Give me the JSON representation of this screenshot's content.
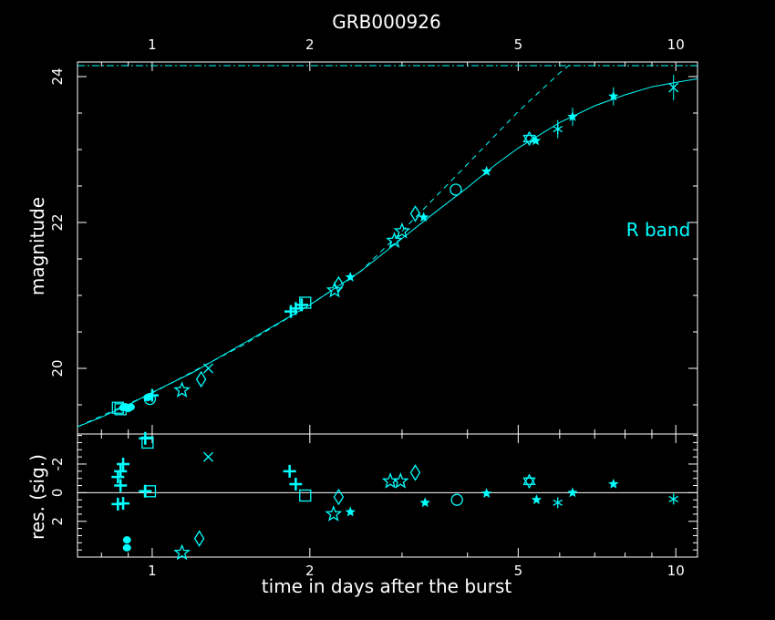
{
  "colors": {
    "background": "#000000",
    "axes": "#ffffff",
    "data": "#00ffff"
  },
  "chart_data": [
    {
      "type": "scatter",
      "title": "GRB000926",
      "xlabel": "",
      "ylabel": "magnitude",
      "x_scale": "log",
      "xlim": [
        0.72,
        11.0
      ],
      "ylim": [
        24.2,
        19.1
      ],
      "y_inverted": true,
      "xticks": [
        1,
        2,
        5,
        10
      ],
      "xtick_labels": [
        "1",
        "2",
        "5",
        "10"
      ],
      "yticks": [
        20,
        22,
        24
      ],
      "ytick_labels": [
        "20",
        "22",
        "24"
      ],
      "annotation": "R band",
      "host_level": 24.15,
      "points": [
        {
          "x": 0.86,
          "y": 19.46,
          "m": "square"
        },
        {
          "x": 0.87,
          "y": 19.44,
          "m": "square"
        },
        {
          "x": 0.88,
          "y": 19.46,
          "m": "circle_filled"
        },
        {
          "x": 0.89,
          "y": 19.47,
          "m": "circle_filled"
        },
        {
          "x": 0.9,
          "y": 19.45,
          "m": "circle_filled"
        },
        {
          "x": 0.91,
          "y": 19.47,
          "m": "circle_filled"
        },
        {
          "x": 0.98,
          "y": 19.6,
          "m": "circle_filled"
        },
        {
          "x": 0.99,
          "y": 19.58,
          "m": "circle"
        },
        {
          "x": 1.0,
          "y": 19.63,
          "m": "plus"
        },
        {
          "x": 1.14,
          "y": 19.7,
          "m": "star"
        },
        {
          "x": 1.24,
          "y": 19.85,
          "m": "diamond"
        },
        {
          "x": 1.28,
          "y": 20.0,
          "m": "cross"
        },
        {
          "x": 1.84,
          "y": 20.78,
          "m": "plus"
        },
        {
          "x": 1.88,
          "y": 20.82,
          "m": "plus"
        },
        {
          "x": 1.93,
          "y": 20.87,
          "m": "plus"
        },
        {
          "x": 1.96,
          "y": 20.9,
          "m": "square"
        },
        {
          "x": 2.23,
          "y": 21.07,
          "m": "star"
        },
        {
          "x": 2.27,
          "y": 21.15,
          "m": "diamond"
        },
        {
          "x": 2.39,
          "y": 21.25,
          "m": "star_filled"
        },
        {
          "x": 2.9,
          "y": 21.75,
          "m": "star"
        },
        {
          "x": 3.0,
          "y": 21.88,
          "m": "star"
        },
        {
          "x": 3.18,
          "y": 22.12,
          "m": "diamond"
        },
        {
          "x": 3.3,
          "y": 22.07,
          "m": "star_filled"
        },
        {
          "x": 3.8,
          "y": 22.45,
          "m": "circle"
        },
        {
          "x": 4.35,
          "y": 22.7,
          "m": "star_filled"
        },
        {
          "x": 5.25,
          "y": 23.15,
          "m": "hexagram"
        },
        {
          "x": 5.4,
          "y": 23.12,
          "m": "star_filled"
        },
        {
          "x": 5.95,
          "y": 23.28,
          "m": "asterisk"
        },
        {
          "x": 6.35,
          "y": 23.45,
          "m": "star_filled"
        },
        {
          "x": 7.6,
          "y": 23.73,
          "m": "star_filled"
        },
        {
          "x": 9.9,
          "y": 23.85,
          "m": "cross"
        }
      ],
      "fit_solid": [
        {
          "x": 0.72,
          "y": 19.2
        },
        {
          "x": 0.8,
          "y": 19.33
        },
        {
          "x": 0.9,
          "y": 19.5
        },
        {
          "x": 1.0,
          "y": 19.67
        },
        {
          "x": 1.2,
          "y": 19.95
        },
        {
          "x": 1.5,
          "y": 20.35
        },
        {
          "x": 2.0,
          "y": 20.87
        },
        {
          "x": 2.5,
          "y": 21.33
        },
        {
          "x": 3.0,
          "y": 21.78
        },
        {
          "x": 3.5,
          "y": 22.16
        },
        {
          "x": 4.0,
          "y": 22.48
        },
        {
          "x": 4.5,
          "y": 22.78
        },
        {
          "x": 5.0,
          "y": 23.02
        },
        {
          "x": 6.0,
          "y": 23.37
        },
        {
          "x": 7.0,
          "y": 23.6
        },
        {
          "x": 8.0,
          "y": 23.75
        },
        {
          "x": 9.0,
          "y": 23.86
        },
        {
          "x": 10.0,
          "y": 23.92
        },
        {
          "x": 11.0,
          "y": 23.97
        }
      ],
      "fit_dashed": [
        {
          "x": 0.72,
          "y": 19.2
        },
        {
          "x": 1.0,
          "y": 19.66
        },
        {
          "x": 1.5,
          "y": 20.33
        },
        {
          "x": 2.0,
          "y": 20.87
        },
        {
          "x": 2.5,
          "y": 21.33
        },
        {
          "x": 3.0,
          "y": 21.88
        },
        {
          "x": 4.0,
          "y": 22.8
        },
        {
          "x": 5.0,
          "y": 23.52
        },
        {
          "x": 6.0,
          "y": 24.05
        },
        {
          "x": 6.5,
          "y": 24.25
        }
      ]
    },
    {
      "type": "scatter",
      "xlabel": "time in days after the burst",
      "ylabel": "res. (sig.)",
      "x_scale": "log",
      "xlim": [
        0.72,
        11.0
      ],
      "ylim": [
        -4.1,
        4.5
      ],
      "xticks": [
        1,
        2,
        5,
        10
      ],
      "xtick_labels": [
        "1",
        "2",
        "5",
        "10"
      ],
      "yticks": [
        2,
        0,
        -2
      ],
      "ytick_labels": [
        "2",
        "0",
        "-2"
      ],
      "points": [
        {
          "x": 0.895,
          "y": 3.85,
          "m": "circle_filled"
        },
        {
          "x": 0.895,
          "y": 3.3,
          "m": "circle_filled"
        },
        {
          "x": 0.86,
          "y": 0.8,
          "m": "plus"
        },
        {
          "x": 0.88,
          "y": 0.75,
          "m": "plus"
        },
        {
          "x": 0.87,
          "y": -0.5,
          "m": "plus"
        },
        {
          "x": 0.86,
          "y": -1.1,
          "m": "plus"
        },
        {
          "x": 0.87,
          "y": -1.5,
          "m": "plus"
        },
        {
          "x": 0.88,
          "y": -2.0,
          "m": "plus"
        },
        {
          "x": 0.97,
          "y": -0.1,
          "m": "plus"
        },
        {
          "x": 0.99,
          "y": -0.1,
          "m": "square"
        },
        {
          "x": 0.97,
          "y": -3.8,
          "m": "plus"
        },
        {
          "x": 0.98,
          "y": -3.5,
          "m": "square"
        },
        {
          "x": 1.14,
          "y": 4.2,
          "m": "star"
        },
        {
          "x": 1.23,
          "y": 3.2,
          "m": "diamond"
        },
        {
          "x": 1.28,
          "y": -2.5,
          "m": "cross"
        },
        {
          "x": 1.83,
          "y": -1.5,
          "m": "plus"
        },
        {
          "x": 1.88,
          "y": -0.6,
          "m": "plus"
        },
        {
          "x": 1.96,
          "y": 0.2,
          "m": "square"
        },
        {
          "x": 2.22,
          "y": 1.5,
          "m": "star"
        },
        {
          "x": 2.27,
          "y": 0.3,
          "m": "diamond"
        },
        {
          "x": 2.39,
          "y": 1.35,
          "m": "star_filled"
        },
        {
          "x": 2.85,
          "y": -0.8,
          "m": "star"
        },
        {
          "x": 2.98,
          "y": -0.8,
          "m": "star"
        },
        {
          "x": 3.18,
          "y": -1.4,
          "m": "diamond"
        },
        {
          "x": 3.32,
          "y": 0.7,
          "m": "star_filled"
        },
        {
          "x": 3.82,
          "y": 0.5,
          "m": "circle"
        },
        {
          "x": 4.35,
          "y": 0.05,
          "m": "star_filled"
        },
        {
          "x": 5.25,
          "y": -0.8,
          "m": "hexagram"
        },
        {
          "x": 5.42,
          "y": 0.5,
          "m": "star_filled"
        },
        {
          "x": 5.95,
          "y": 0.7,
          "m": "asterisk"
        },
        {
          "x": 6.35,
          "y": 0.0,
          "m": "star_filled"
        },
        {
          "x": 7.6,
          "y": -0.6,
          "m": "star_filled"
        },
        {
          "x": 9.9,
          "y": 0.45,
          "m": "asterisk"
        }
      ]
    }
  ]
}
